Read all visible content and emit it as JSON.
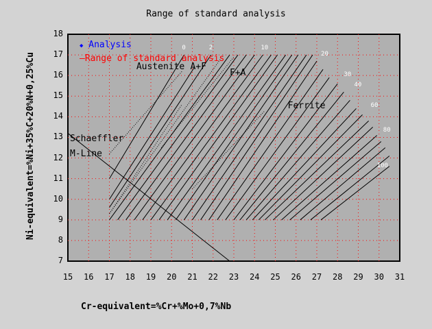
{
  "chart_data": {
    "type": "line",
    "title": "Range of standard analysis",
    "xlabel": "Cr-equivalent=%Cr+%Mo+0,7%Nb",
    "ylabel": "Ni-equivalent=%Ni+35%C+20%N+0,25%Cu",
    "xlim": [
      15,
      31
    ],
    "ylim": [
      7,
      18
    ],
    "x_ticks": [
      "15",
      "16",
      "17",
      "18",
      "19",
      "20",
      "21",
      "22",
      "23",
      "24",
      "25",
      "26",
      "27",
      "28",
      "29",
      "30",
      "31"
    ],
    "y_ticks": [
      "18",
      "17",
      "16",
      "15",
      "14",
      "13",
      "12",
      "11",
      "10",
      "9",
      "8",
      "7"
    ],
    "grid": true,
    "legend": {
      "position": "top-left",
      "entries": [
        {
          "label": "Analysis",
          "marker": "diamond",
          "color": "#0000ff"
        },
        {
          "label": "Range of standard analysis",
          "marker": "line",
          "color": "#ff0000"
        }
      ]
    },
    "regions": [
      {
        "label": "Austenite",
        "x": 18.3,
        "y": 16.4
      },
      {
        "label": "A+F",
        "x": 20.9,
        "y": 16.4
      },
      {
        "label": "F+A",
        "x": 22.8,
        "y": 16.1
      },
      {
        "label": "Ferrite",
        "x": 25.6,
        "y": 14.5
      },
      {
        "label": "Schaeffler",
        "x": 15.1,
        "y": 12.9
      },
      {
        "label": "M-Line",
        "x": 15.1,
        "y": 12.2
      }
    ],
    "iso_ferrite_labels": [
      {
        "label": "0",
        "x": 20.5,
        "y": 17.3
      },
      {
        "label": "2",
        "x": 21.8,
        "y": 17.3
      },
      {
        "label": "10",
        "x": 24.3,
        "y": 17.3
      },
      {
        "label": "20",
        "x": 27.2,
        "y": 17.0
      },
      {
        "label": "30",
        "x": 28.3,
        "y": 16.0
      },
      {
        "label": "40",
        "x": 28.8,
        "y": 15.5
      },
      {
        "label": "60",
        "x": 29.6,
        "y": 14.5
      },
      {
        "label": "80",
        "x": 30.2,
        "y": 13.3
      },
      {
        "label": "100",
        "x": 29.9,
        "y": 11.6
      }
    ],
    "m_line": {
      "from": [
        15.0,
        13.2
      ],
      "to": [
        22.8,
        7.0
      ]
    },
    "iso_lines": [
      {
        "pct": "0",
        "from": [
          17.0,
          11.0
        ],
        "to": [
          20.6,
          17.0
        ],
        "dotted": false
      },
      {
        "pct": "",
        "from": [
          17.0,
          10.0
        ],
        "to": [
          21.1,
          16.4
        ],
        "dotted": false
      },
      {
        "pct": "1",
        "from": [
          17.0,
          12.2
        ],
        "to": [
          20.5,
          16.2
        ],
        "dotted": true
      },
      {
        "pct": "2",
        "from": [
          17.0,
          9.6
        ],
        "to": [
          21.9,
          17.0
        ],
        "dotted": false
      },
      {
        "pct": "",
        "from": [
          17.0,
          9.3
        ],
        "to": [
          22.5,
          17.0
        ],
        "dotted": true
      },
      {
        "pct": "",
        "from": [
          17.0,
          9.0
        ],
        "to": [
          22.8,
          17.0
        ],
        "dotted": false
      },
      {
        "pct": "",
        "from": [
          17.4,
          9.0
        ],
        "to": [
          23.2,
          17.0
        ],
        "dotted": false
      },
      {
        "pct": "",
        "from": [
          17.8,
          9.0
        ],
        "to": [
          23.6,
          17.0
        ],
        "dotted": false
      },
      {
        "pct": "",
        "from": [
          18.2,
          9.0
        ],
        "to": [
          24.0,
          17.0
        ],
        "dotted": false
      },
      {
        "pct": "10",
        "from": [
          18.6,
          9.0
        ],
        "to": [
          24.4,
          17.0
        ],
        "dotted": false
      },
      {
        "pct": "",
        "from": [
          19.0,
          9.0
        ],
        "to": [
          24.8,
          17.0
        ],
        "dotted": false
      },
      {
        "pct": "",
        "from": [
          19.4,
          9.0
        ],
        "to": [
          25.1,
          17.0
        ],
        "dotted": false
      },
      {
        "pct": "",
        "from": [
          19.8,
          9.0
        ],
        "to": [
          25.5,
          17.0
        ],
        "dotted": false
      },
      {
        "pct": "",
        "from": [
          20.2,
          9.0
        ],
        "to": [
          25.8,
          17.0
        ],
        "dotted": false
      },
      {
        "pct": "",
        "from": [
          20.6,
          9.0
        ],
        "to": [
          26.1,
          17.0
        ],
        "dotted": false
      },
      {
        "pct": "",
        "from": [
          21.0,
          9.0
        ],
        "to": [
          26.5,
          17.0
        ],
        "dotted": false
      },
      {
        "pct": "",
        "from": [
          21.4,
          9.0
        ],
        "to": [
          26.8,
          17.0
        ],
        "dotted": false
      },
      {
        "pct": "20",
        "from": [
          21.8,
          9.0
        ],
        "to": [
          27.0,
          16.7
        ],
        "dotted": false
      },
      {
        "pct": "",
        "from": [
          22.2,
          9.0
        ],
        "to": [
          27.3,
          16.3
        ],
        "dotted": false
      },
      {
        "pct": "",
        "from": [
          22.6,
          9.0
        ],
        "to": [
          27.6,
          15.9
        ],
        "dotted": false
      },
      {
        "pct": "30",
        "from": [
          23.0,
          9.0
        ],
        "to": [
          28.0,
          15.6
        ],
        "dotted": false
      },
      {
        "pct": "",
        "from": [
          23.3,
          9.0
        ],
        "to": [
          28.3,
          15.2
        ],
        "dotted": false
      },
      {
        "pct": "40",
        "from": [
          23.6,
          9.0
        ],
        "to": [
          28.6,
          14.8
        ],
        "dotted": false
      },
      {
        "pct": "",
        "from": [
          23.9,
          9.0
        ],
        "to": [
          28.9,
          14.4
        ],
        "dotted": false
      },
      {
        "pct": "",
        "from": [
          24.2,
          9.0
        ],
        "to": [
          29.2,
          14.1
        ],
        "dotted": false
      },
      {
        "pct": "60",
        "from": [
          24.5,
          9.0
        ],
        "to": [
          29.5,
          13.8
        ],
        "dotted": false
      },
      {
        "pct": "",
        "from": [
          24.9,
          9.0
        ],
        "to": [
          29.7,
          13.5
        ],
        "dotted": false
      },
      {
        "pct": "",
        "from": [
          25.3,
          9.0
        ],
        "to": [
          29.9,
          13.1
        ],
        "dotted": false
      },
      {
        "pct": "80",
        "from": [
          25.7,
          9.0
        ],
        "to": [
          30.1,
          12.8
        ],
        "dotted": false
      },
      {
        "pct": "",
        "from": [
          26.2,
          9.0
        ],
        "to": [
          30.3,
          12.5
        ],
        "dotted": false
      },
      {
        "pct": "",
        "from": [
          26.7,
          9.0
        ],
        "to": [
          30.5,
          12.1
        ],
        "dotted": false
      },
      {
        "pct": "100",
        "from": [
          27.2,
          9.0
        ],
        "to": [
          30.5,
          11.6
        ],
        "dotted": false
      }
    ],
    "dotted_boundaries": [
      {
        "from": [
          17.0,
          9.3
        ],
        "to": [
          20.5,
          14.6
        ]
      },
      {
        "from": [
          19.5,
          12.5
        ],
        "to": [
          23.0,
          16.9
        ]
      },
      {
        "from": [
          21.0,
          10.5
        ],
        "to": [
          24.5,
          14.3
        ]
      }
    ]
  },
  "colors": {
    "background": "#d3d3d3",
    "plot_bg": "#b0b0b0",
    "grid": "#ff0000",
    "lines": "#000000",
    "iso_label": "#ffffff",
    "legend_analysis": "#0000ff",
    "legend_range": "#ff0000"
  }
}
